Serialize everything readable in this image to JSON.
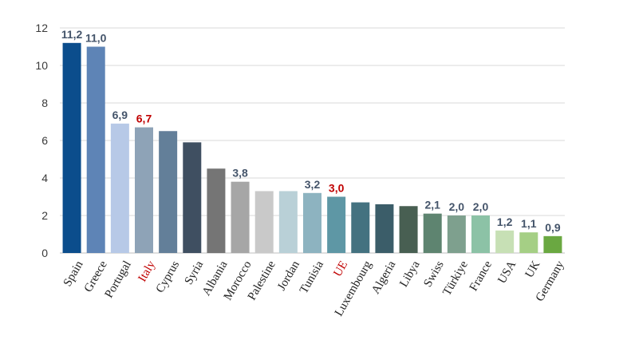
{
  "chart_data": {
    "type": "bar",
    "title": "",
    "xlabel": "",
    "ylabel": "",
    "ylim": [
      0,
      12
    ],
    "yticks": [
      "0",
      "2",
      "4",
      "6",
      "8",
      "10",
      "12"
    ],
    "grid": true,
    "legend": "none",
    "highlight_color": "#c00000",
    "label_color": "#44546a",
    "categories": [
      "Spain",
      "Greece",
      "Portugal",
      "Italy",
      "Cyprus",
      "Syria",
      "Albania",
      "Morocco",
      "Palestine",
      "Jordan",
      "Tunisia",
      "UE",
      "Luxembourg",
      "Algeria",
      "Libya",
      "Swiss",
      "Türkiye",
      "France",
      "USA",
      "UK",
      "Germany"
    ],
    "values": [
      11.2,
      11.0,
      6.9,
      6.7,
      6.5,
      5.9,
      4.5,
      3.8,
      3.3,
      3.3,
      3.2,
      3.0,
      2.7,
      2.6,
      2.5,
      2.1,
      2.0,
      2.0,
      1.2,
      1.1,
      0.9
    ],
    "data_labels": [
      "11,2",
      "11,0",
      "6,9",
      "6,7",
      "",
      "",
      "",
      "3,8",
      "",
      "",
      "3,2",
      "3,0",
      "",
      "",
      "",
      "2,1",
      "2,0",
      "2,0",
      "1,2",
      "1,1",
      "0,9"
    ],
    "highlighted": [
      "Italy",
      "UE"
    ],
    "bar_colors": [
      "#0b4d8c",
      "#5e84b6",
      "#b7c9e7",
      "#8ea3b7",
      "#637f99",
      "#3f4f61",
      "#757575",
      "#a6a6a6",
      "#c9c9c9",
      "#b9d0d7",
      "#8db3c0",
      "#5e97a5",
      "#447280",
      "#3b5d69",
      "#485f52",
      "#5e8470",
      "#7ea08e",
      "#8cc2a6",
      "#c7e0b5",
      "#a5cf85",
      "#6aa841"
    ]
  }
}
